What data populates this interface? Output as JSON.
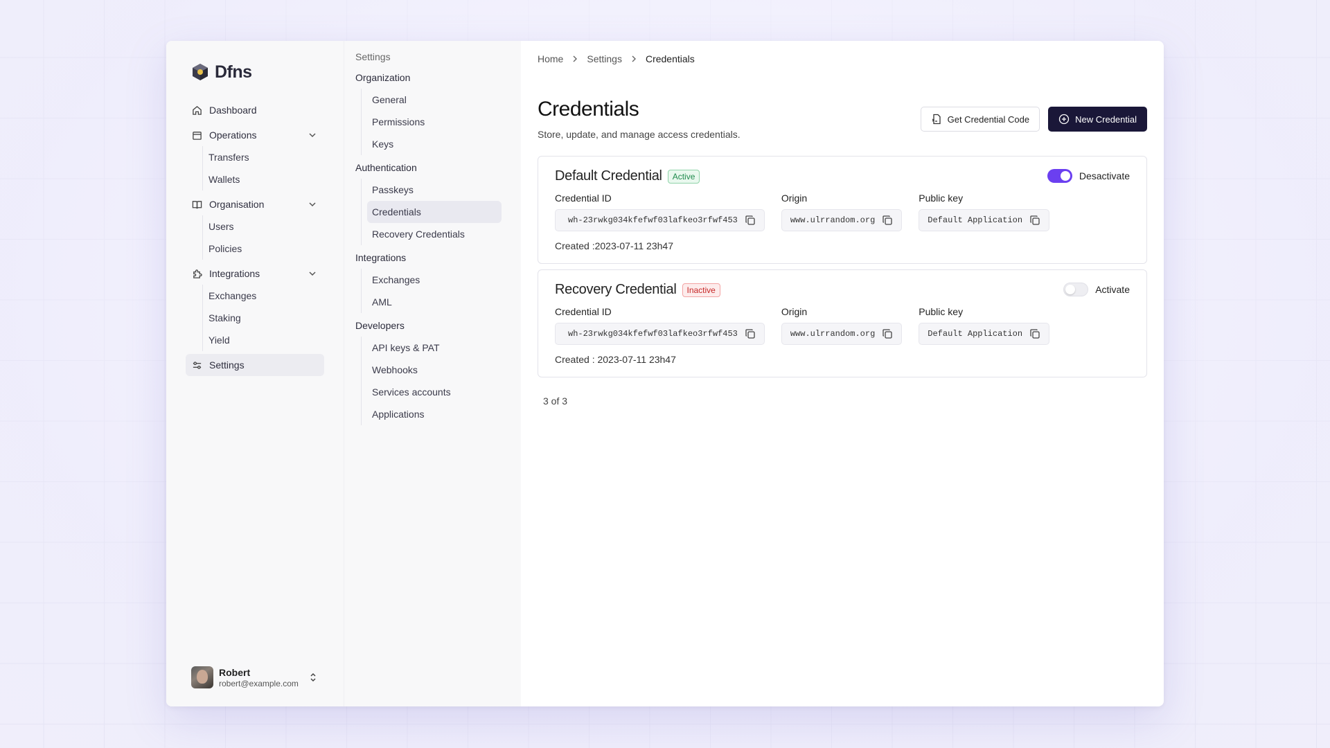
{
  "app": {
    "logo_text": "Dfns"
  },
  "sidebar": {
    "items": [
      {
        "label": "Dashboard"
      },
      {
        "label": "Operations",
        "children": [
          "Transfers",
          "Wallets"
        ]
      },
      {
        "label": "Organisation",
        "children": [
          "Users",
          "Policies"
        ]
      },
      {
        "label": "Integrations",
        "children": [
          "Exchanges",
          "Staking",
          "Yield"
        ]
      },
      {
        "label": "Settings"
      }
    ]
  },
  "user": {
    "name": "Robert",
    "email": "robert@example.com"
  },
  "settings_nav": {
    "title": "Settings",
    "sections": [
      {
        "title": "Organization",
        "items": [
          "General",
          "Permissions",
          "Keys"
        ]
      },
      {
        "title": "Authentication",
        "items": [
          "Passkeys",
          "Credentials",
          "Recovery Credentials"
        ]
      },
      {
        "title": "Integrations",
        "items": [
          "Exchanges",
          "AML"
        ]
      },
      {
        "title": "Developers",
        "items": [
          "API keys & PAT",
          "Webhooks",
          "Services accounts",
          "Applications"
        ]
      }
    ]
  },
  "breadcrumb": [
    "Home",
    "Settings",
    "Credentials"
  ],
  "page": {
    "title": "Credentials",
    "subtitle": "Store, update, and manage access credentials.",
    "get_code_label": "Get Credential Code",
    "new_label": "New Credential"
  },
  "labels": {
    "credential_id": "Credential ID",
    "origin": "Origin",
    "public_key": "Public key"
  },
  "credentials": [
    {
      "name": "Default Credential",
      "status": "Active",
      "toggle_label": "Desactivate",
      "enabled": true,
      "credential_id": "wh-23rwkg034kfefwf03lafkeo3rfwf453",
      "origin": "www.ulrrandom.org",
      "public_key": "Default Application",
      "created": "Created :2023-07-11 23h47"
    },
    {
      "name": "Recovery Credential",
      "status": "Inactive",
      "toggle_label": "Activate",
      "enabled": false,
      "credential_id": "wh-23rwkg034kfefwf03lafkeo3rfwf453",
      "origin": "www.ulrrandom.org",
      "public_key": "Default Application",
      "created": "Created : 2023-07-11 23h47"
    }
  ],
  "pagination": "3 of 3",
  "colors": {
    "accent": "#6b3ff0",
    "dark_button": "#1a1738",
    "active_badge": "#1f8a4c",
    "inactive_badge": "#c62828"
  }
}
